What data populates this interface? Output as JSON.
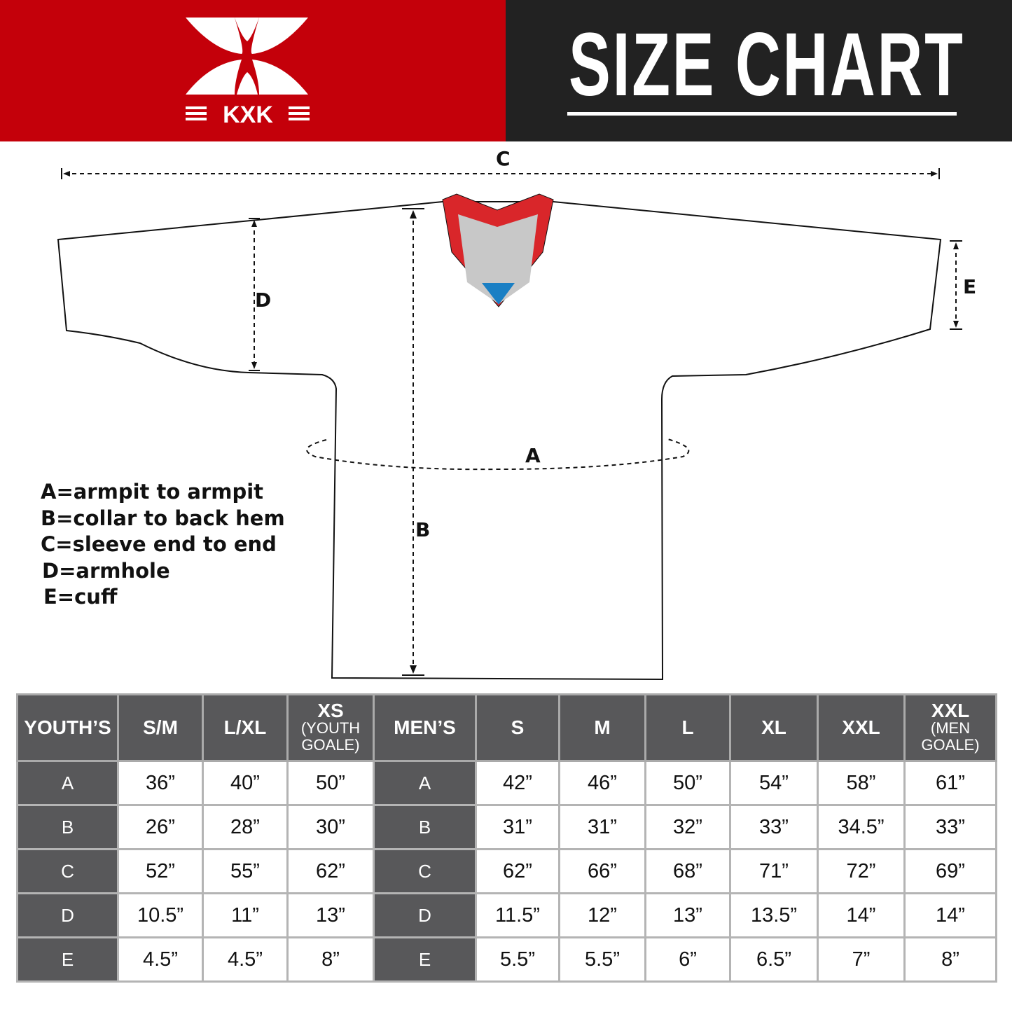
{
  "header": {
    "logo_text": "KXK",
    "title": "SIZE CHART",
    "colors": {
      "red": "#c4000a",
      "dark": "#222222"
    }
  },
  "diagram": {
    "labels": {
      "A": "A",
      "B": "B",
      "C": "C",
      "D": "D",
      "E": "E"
    },
    "collar_colors": {
      "trim": "#d9262a",
      "inner": "#c8c8c8",
      "accent": "#1a7fc4"
    }
  },
  "legend": [
    "A=armpit to armpit",
    "B=collar to back hem",
    "C=sleeve end to end",
    "D=armhole",
    "E=cuff"
  ],
  "table": {
    "youth": {
      "header": "YOUTH’S",
      "cols": [
        {
          "main": "S/M",
          "sub": ""
        },
        {
          "main": "L/XL",
          "sub": ""
        },
        {
          "main": "XS",
          "sub": "(YOUTH GOALE)"
        }
      ],
      "rows": [
        {
          "label": "A",
          "values": [
            "36”",
            "40”",
            "50”"
          ]
        },
        {
          "label": "B",
          "values": [
            "26”",
            "28”",
            "30”"
          ]
        },
        {
          "label": "C",
          "values": [
            "52”",
            "55”",
            "62”"
          ]
        },
        {
          "label": "D",
          "values": [
            "10.5”",
            "11”",
            "13”"
          ]
        },
        {
          "label": "E",
          "values": [
            "4.5”",
            "4.5”",
            "8”"
          ]
        }
      ]
    },
    "men": {
      "header": "MEN’S",
      "cols": [
        {
          "main": "S",
          "sub": ""
        },
        {
          "main": "M",
          "sub": ""
        },
        {
          "main": "L",
          "sub": ""
        },
        {
          "main": "XL",
          "sub": ""
        },
        {
          "main": "XXL",
          "sub": ""
        },
        {
          "main": "XXL",
          "sub": "(MEN GOALE)"
        }
      ],
      "rows": [
        {
          "label": "A",
          "values": [
            "42”",
            "46”",
            "50”",
            "54”",
            "58”",
            "61”"
          ]
        },
        {
          "label": "B",
          "values": [
            "31”",
            "31”",
            "32”",
            "33”",
            "34.5”",
            "33”"
          ]
        },
        {
          "label": "C",
          "values": [
            "62”",
            "66”",
            "68”",
            "71”",
            "72”",
            "69”"
          ]
        },
        {
          "label": "D",
          "values": [
            "11.5”",
            "12”",
            "13”",
            "13.5”",
            "14”",
            "14”"
          ]
        },
        {
          "label": "E",
          "values": [
            "5.5”",
            "5.5”",
            "6”",
            "6.5”",
            "7”",
            "8”"
          ]
        }
      ]
    }
  }
}
